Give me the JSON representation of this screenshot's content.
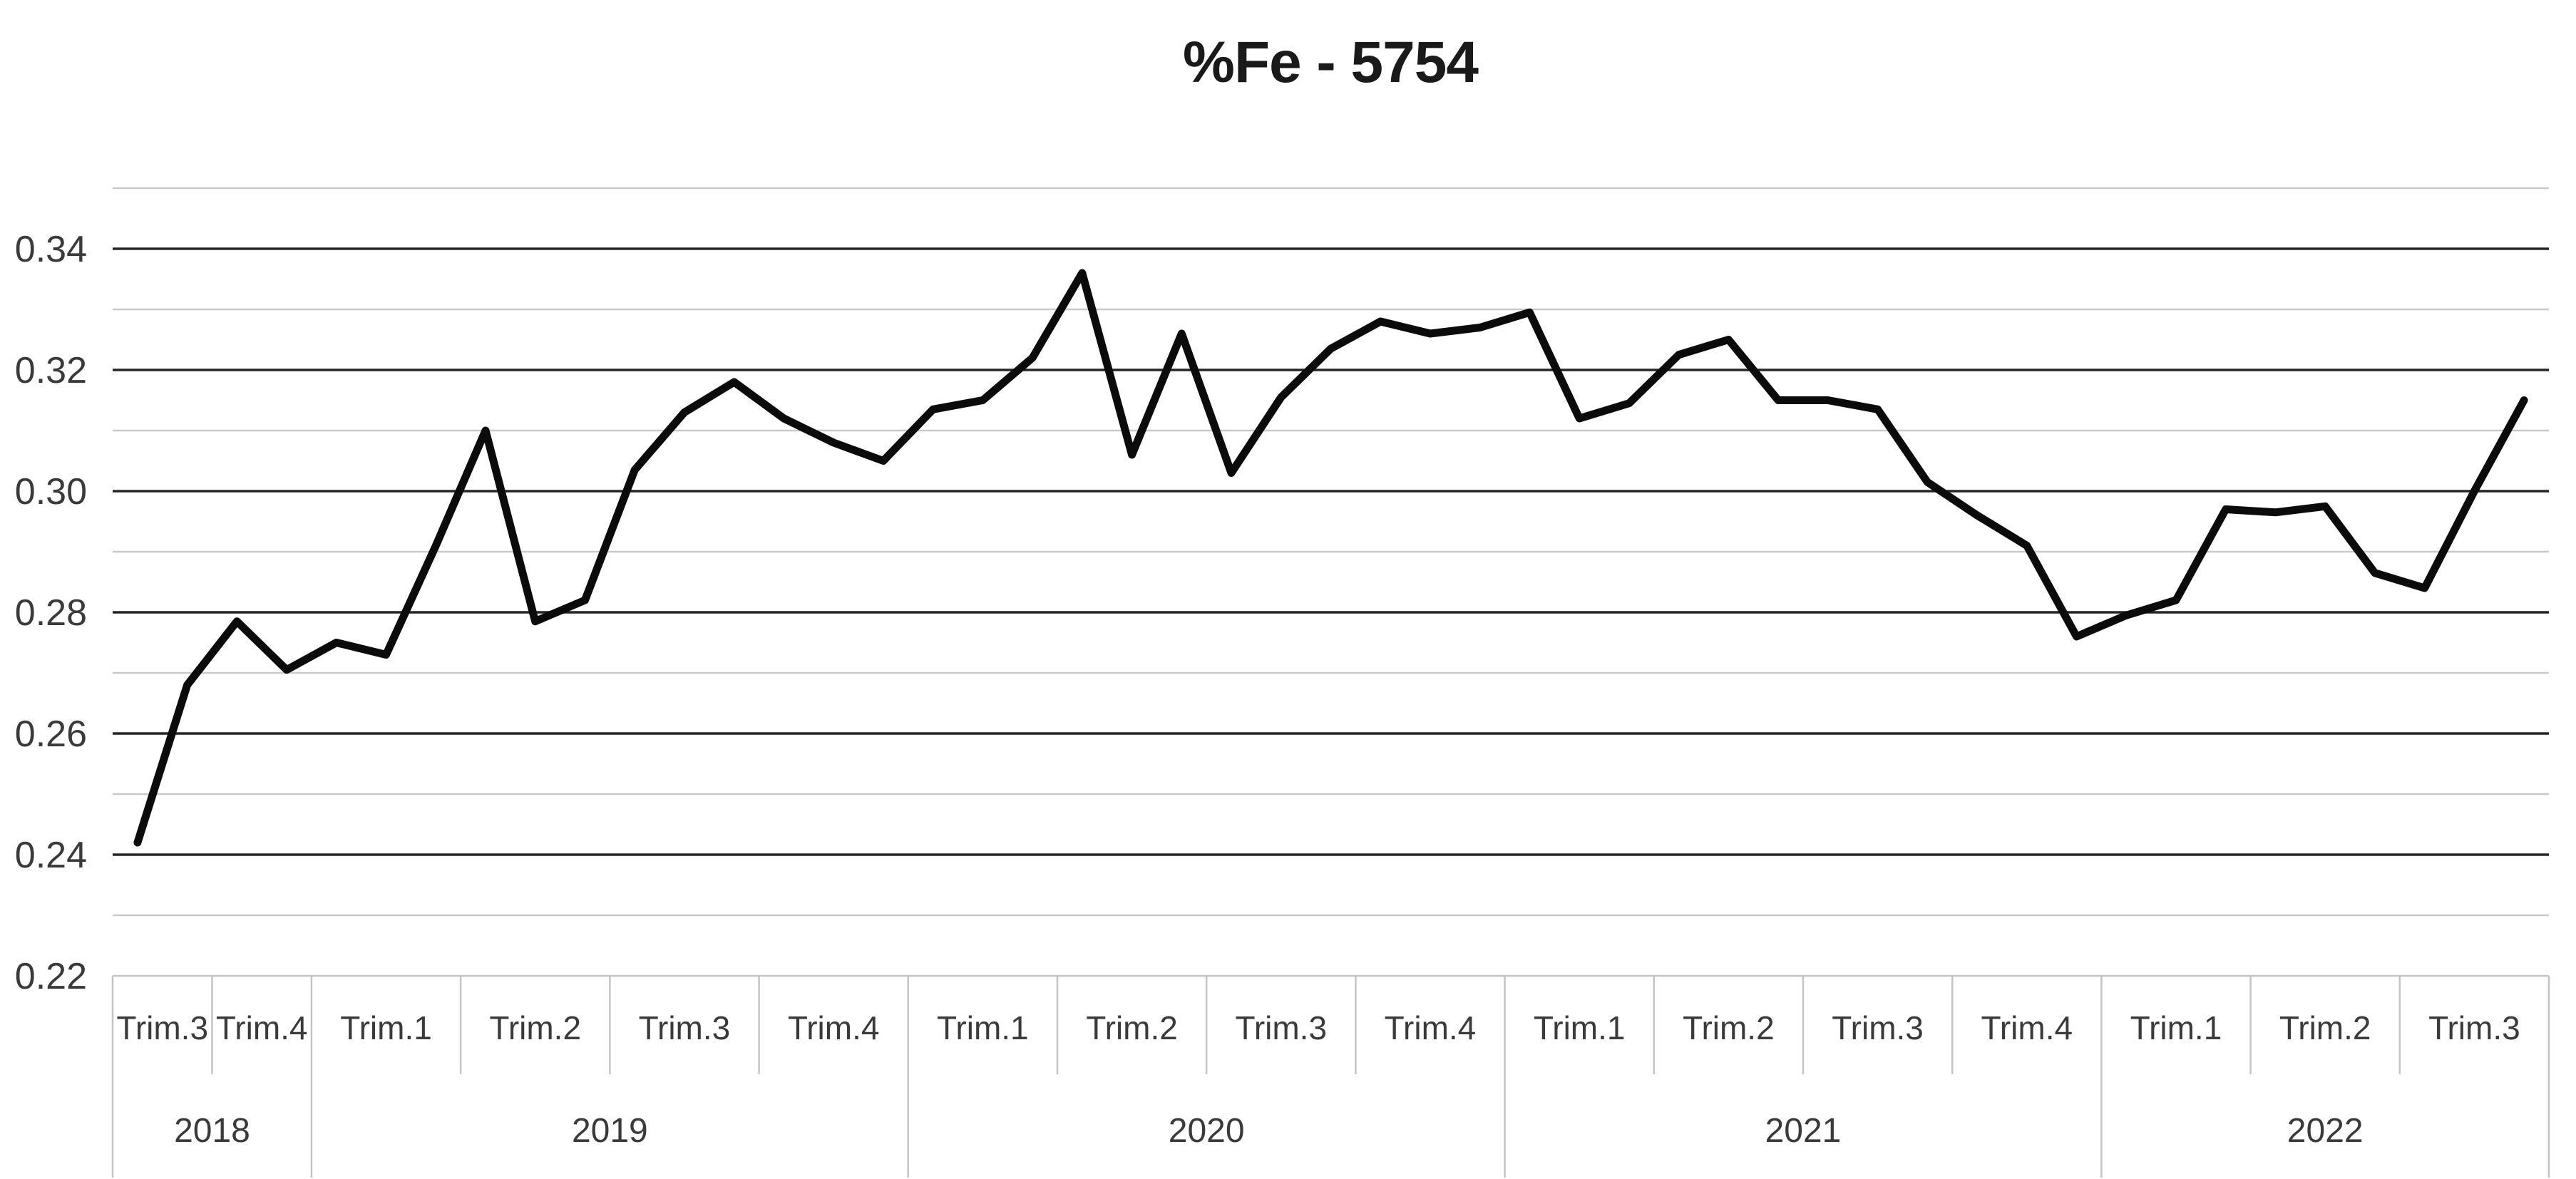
{
  "chart_data": {
    "type": "line",
    "title": "%Fe - 5754",
    "legend": "none",
    "grid": {
      "major_color": "#262626",
      "minor_color": "#c9c9c9"
    },
    "line_color": "#0b0b0b",
    "label_color": "#3a3a3a",
    "title_color": "#1a1a1a",
    "table_border_color": "#c4c4c4",
    "y_axis": {
      "min": 0.22,
      "max": 0.35,
      "tick_labels": [
        "0.34",
        "0.32",
        "0.30",
        "0.28",
        "0.26",
        "0.24",
        "0.22"
      ],
      "tick_values": [
        0.34,
        0.32,
        0.3,
        0.28,
        0.26,
        0.24,
        0.22
      ],
      "major_gridlines": [
        0.24,
        0.26,
        0.28,
        0.3,
        0.32,
        0.34
      ],
      "minor_gridlines": [
        0.23,
        0.25,
        0.27,
        0.29,
        0.31,
        0.33,
        0.35
      ]
    },
    "x_groups": [
      {
        "year": "2018",
        "quarters": [
          {
            "label": "Trim.3",
            "points": 2
          },
          {
            "label": "Trim.4",
            "points": 2
          }
        ]
      },
      {
        "year": "2019",
        "quarters": [
          {
            "label": "Trim.1",
            "points": 3
          },
          {
            "label": "Trim.2",
            "points": 3
          },
          {
            "label": "Trim.3",
            "points": 3
          },
          {
            "label": "Trim.4",
            "points": 3
          }
        ]
      },
      {
        "year": "2020",
        "quarters": [
          {
            "label": "Trim.1",
            "points": 3
          },
          {
            "label": "Trim.2",
            "points": 3
          },
          {
            "label": "Trim.3",
            "points": 3
          },
          {
            "label": "Trim.4",
            "points": 3
          }
        ]
      },
      {
        "year": "2021",
        "quarters": [
          {
            "label": "Trim.1",
            "points": 3
          },
          {
            "label": "Trim.2",
            "points": 3
          },
          {
            "label": "Trim.3",
            "points": 3
          },
          {
            "label": "Trim.4",
            "points": 3
          }
        ]
      },
      {
        "year": "2022",
        "quarters": [
          {
            "label": "Trim.1",
            "points": 3
          },
          {
            "label": "Trim.2",
            "points": 3
          },
          {
            "label": "Trim.3",
            "points": 3
          }
        ]
      }
    ],
    "series": [
      {
        "name": "%Fe - 5754",
        "values": [
          0.242,
          0.268,
          0.2785,
          0.2705,
          0.275,
          0.273,
          0.291,
          0.31,
          0.2785,
          0.282,
          0.3035,
          0.313,
          0.318,
          0.312,
          0.308,
          0.305,
          0.3135,
          0.315,
          0.322,
          0.336,
          0.306,
          0.326,
          0.303,
          0.3155,
          0.3235,
          0.328,
          0.326,
          0.327,
          0.3295,
          0.312,
          0.3145,
          0.3225,
          0.325,
          0.315,
          0.315,
          0.3135,
          0.3015,
          0.296,
          0.291,
          0.276,
          0.2795,
          0.282,
          0.297,
          0.2965,
          0.2975,
          0.2865,
          0.284,
          0.3,
          0.315
        ]
      }
    ]
  }
}
